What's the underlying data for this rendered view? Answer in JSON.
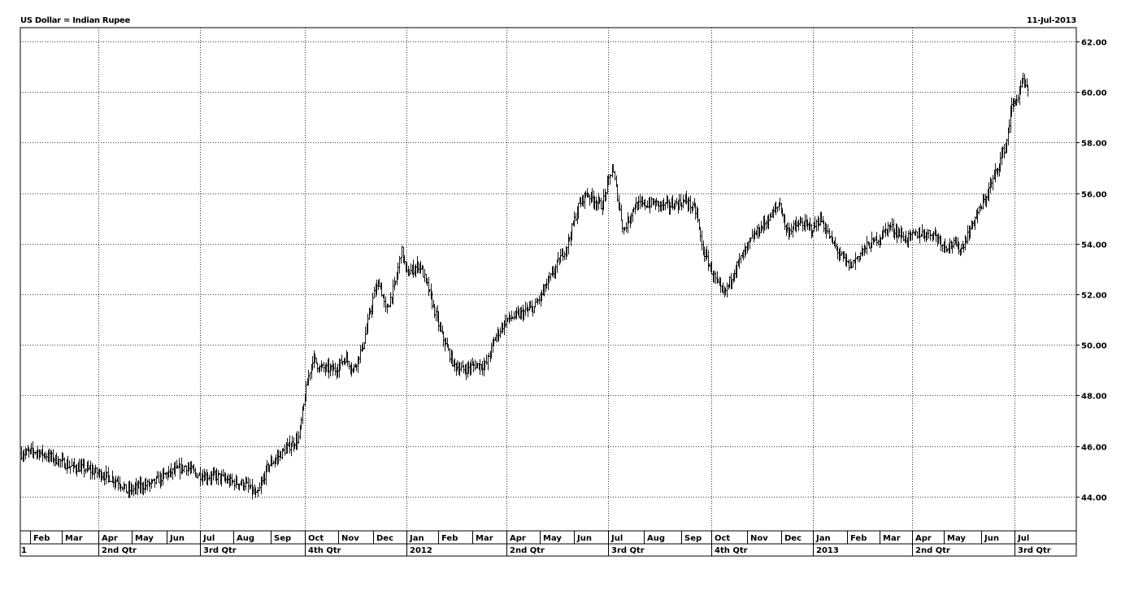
{
  "header": {
    "title": "US Dollar = Indian Rupee",
    "date": "11-Jul-2013"
  },
  "chart_data": {
    "type": "ohlc",
    "title": "US Dollar = Indian Rupee",
    "xlabel": "",
    "ylabel": "",
    "ylim": [
      42.5,
      62.5
    ],
    "y_ticks": [
      44.0,
      46.0,
      48.0,
      50.0,
      52.0,
      54.0,
      56.0,
      58.0,
      60.0,
      62.0
    ],
    "y_tick_labels": [
      "44.00",
      "46.00",
      "48.00",
      "50.00",
      "52.00",
      "54.00",
      "56.00",
      "58.00",
      "60.00",
      "62.00"
    ],
    "grid": true,
    "month_labels": [
      "Feb",
      "Mar",
      "Apr",
      "May",
      "Jun",
      "Jul",
      "Aug",
      "Sep",
      "Oct",
      "Nov",
      "Dec",
      "Jan",
      "Feb",
      "Mar",
      "Apr",
      "May",
      "Jun",
      "Jul",
      "Aug",
      "Sep",
      "Oct",
      "Nov",
      "Dec",
      "Jan",
      "Feb",
      "Mar",
      "Apr",
      "May",
      "Jun",
      "Jul"
    ],
    "quarter_labels": [
      "1",
      "2nd Qtr",
      "3rd Qtr",
      "4th Qtr",
      "2012",
      "2nd Qtr",
      "3rd Qtr",
      "4th Qtr",
      "2013",
      "2nd Qtr",
      "3rd Qtr"
    ],
    "anchors": [
      [
        "2011-01-03",
        45.7
      ],
      [
        "2011-01-15",
        45.8
      ],
      [
        "2011-02-01",
        45.5
      ],
      [
        "2011-02-15",
        45.2
      ],
      [
        "2011-03-01",
        45.1
      ],
      [
        "2011-03-15",
        44.9
      ],
      [
        "2011-04-01",
        44.6
      ],
      [
        "2011-04-08",
        44.2
      ],
      [
        "2011-04-20",
        44.4
      ],
      [
        "2011-05-01",
        44.5
      ],
      [
        "2011-05-15",
        44.9
      ],
      [
        "2011-06-01",
        45.2
      ],
      [
        "2011-06-10",
        44.9
      ],
      [
        "2011-06-20",
        44.8
      ],
      [
        "2011-07-01",
        44.8
      ],
      [
        "2011-07-10",
        44.6
      ],
      [
        "2011-07-25",
        44.5
      ],
      [
        "2011-08-01",
        44.2
      ],
      [
        "2011-08-05",
        44.0
      ],
      [
        "2011-08-15",
        45.2
      ],
      [
        "2011-09-01",
        45.9
      ],
      [
        "2011-09-12",
        46.3
      ],
      [
        "2011-09-20",
        48.5
      ],
      [
        "2011-09-25",
        49.5
      ],
      [
        "2011-10-01",
        49.1
      ],
      [
        "2011-10-15",
        49.0
      ],
      [
        "2011-10-25",
        49.5
      ],
      [
        "2011-11-01",
        49.0
      ],
      [
        "2011-11-10",
        50.0
      ],
      [
        "2011-11-20",
        52.0
      ],
      [
        "2011-11-25",
        52.5
      ],
      [
        "2011-12-01",
        51.3
      ],
      [
        "2011-12-10",
        52.5
      ],
      [
        "2011-12-15",
        53.8
      ],
      [
        "2011-12-20",
        52.8
      ],
      [
        "2012-01-01",
        53.2
      ],
      [
        "2012-01-10",
        52.0
      ],
      [
        "2012-01-20",
        50.5
      ],
      [
        "2012-02-01",
        49.2
      ],
      [
        "2012-02-10",
        49.0
      ],
      [
        "2012-02-20",
        49.2
      ],
      [
        "2012-03-01",
        49.2
      ],
      [
        "2012-03-10",
        50.3
      ],
      [
        "2012-03-20",
        51.0
      ],
      [
        "2012-04-01",
        51.2
      ],
      [
        "2012-04-15",
        51.5
      ],
      [
        "2012-05-01",
        52.8
      ],
      [
        "2012-05-15",
        54.0
      ],
      [
        "2012-05-25",
        55.5
      ],
      [
        "2012-06-01",
        56.0
      ],
      [
        "2012-06-15",
        55.5
      ],
      [
        "2012-06-25",
        57.0
      ],
      [
        "2012-07-01",
        55.5
      ],
      [
        "2012-07-05",
        54.5
      ],
      [
        "2012-07-15",
        55.5
      ],
      [
        "2012-08-01",
        55.6
      ],
      [
        "2012-08-15",
        55.5
      ],
      [
        "2012-09-01",
        55.7
      ],
      [
        "2012-09-10",
        55.2
      ],
      [
        "2012-09-15",
        53.8
      ],
      [
        "2012-09-25",
        52.8
      ],
      [
        "2012-10-01",
        52.2
      ],
      [
        "2012-10-05",
        52.0
      ],
      [
        "2012-10-15",
        53.0
      ],
      [
        "2012-11-01",
        54.3
      ],
      [
        "2012-11-15",
        55.0
      ],
      [
        "2012-11-25",
        55.6
      ],
      [
        "2012-12-01",
        54.5
      ],
      [
        "2012-12-15",
        54.8
      ],
      [
        "2012-12-25",
        54.6
      ],
      [
        "2013-01-01",
        55.0
      ],
      [
        "2013-01-10",
        54.2
      ],
      [
        "2013-01-20",
        53.5
      ],
      [
        "2013-01-28",
        53.1
      ],
      [
        "2013-02-10",
        53.8
      ],
      [
        "2013-02-25",
        54.3
      ],
      [
        "2013-03-05",
        54.7
      ],
      [
        "2013-03-20",
        54.2
      ],
      [
        "2013-04-01",
        54.4
      ],
      [
        "2013-04-15",
        54.4
      ],
      [
        "2013-04-25",
        53.9
      ],
      [
        "2013-05-01",
        54.0
      ],
      [
        "2013-05-10",
        53.8
      ],
      [
        "2013-05-20",
        54.8
      ],
      [
        "2013-06-01",
        55.8
      ],
      [
        "2013-06-10",
        56.8
      ],
      [
        "2013-06-20",
        58.0
      ],
      [
        "2013-06-25",
        59.5
      ],
      [
        "2013-07-01",
        59.8
      ],
      [
        "2013-07-05",
        60.5
      ],
      [
        "2013-07-11",
        59.8
      ]
    ]
  }
}
